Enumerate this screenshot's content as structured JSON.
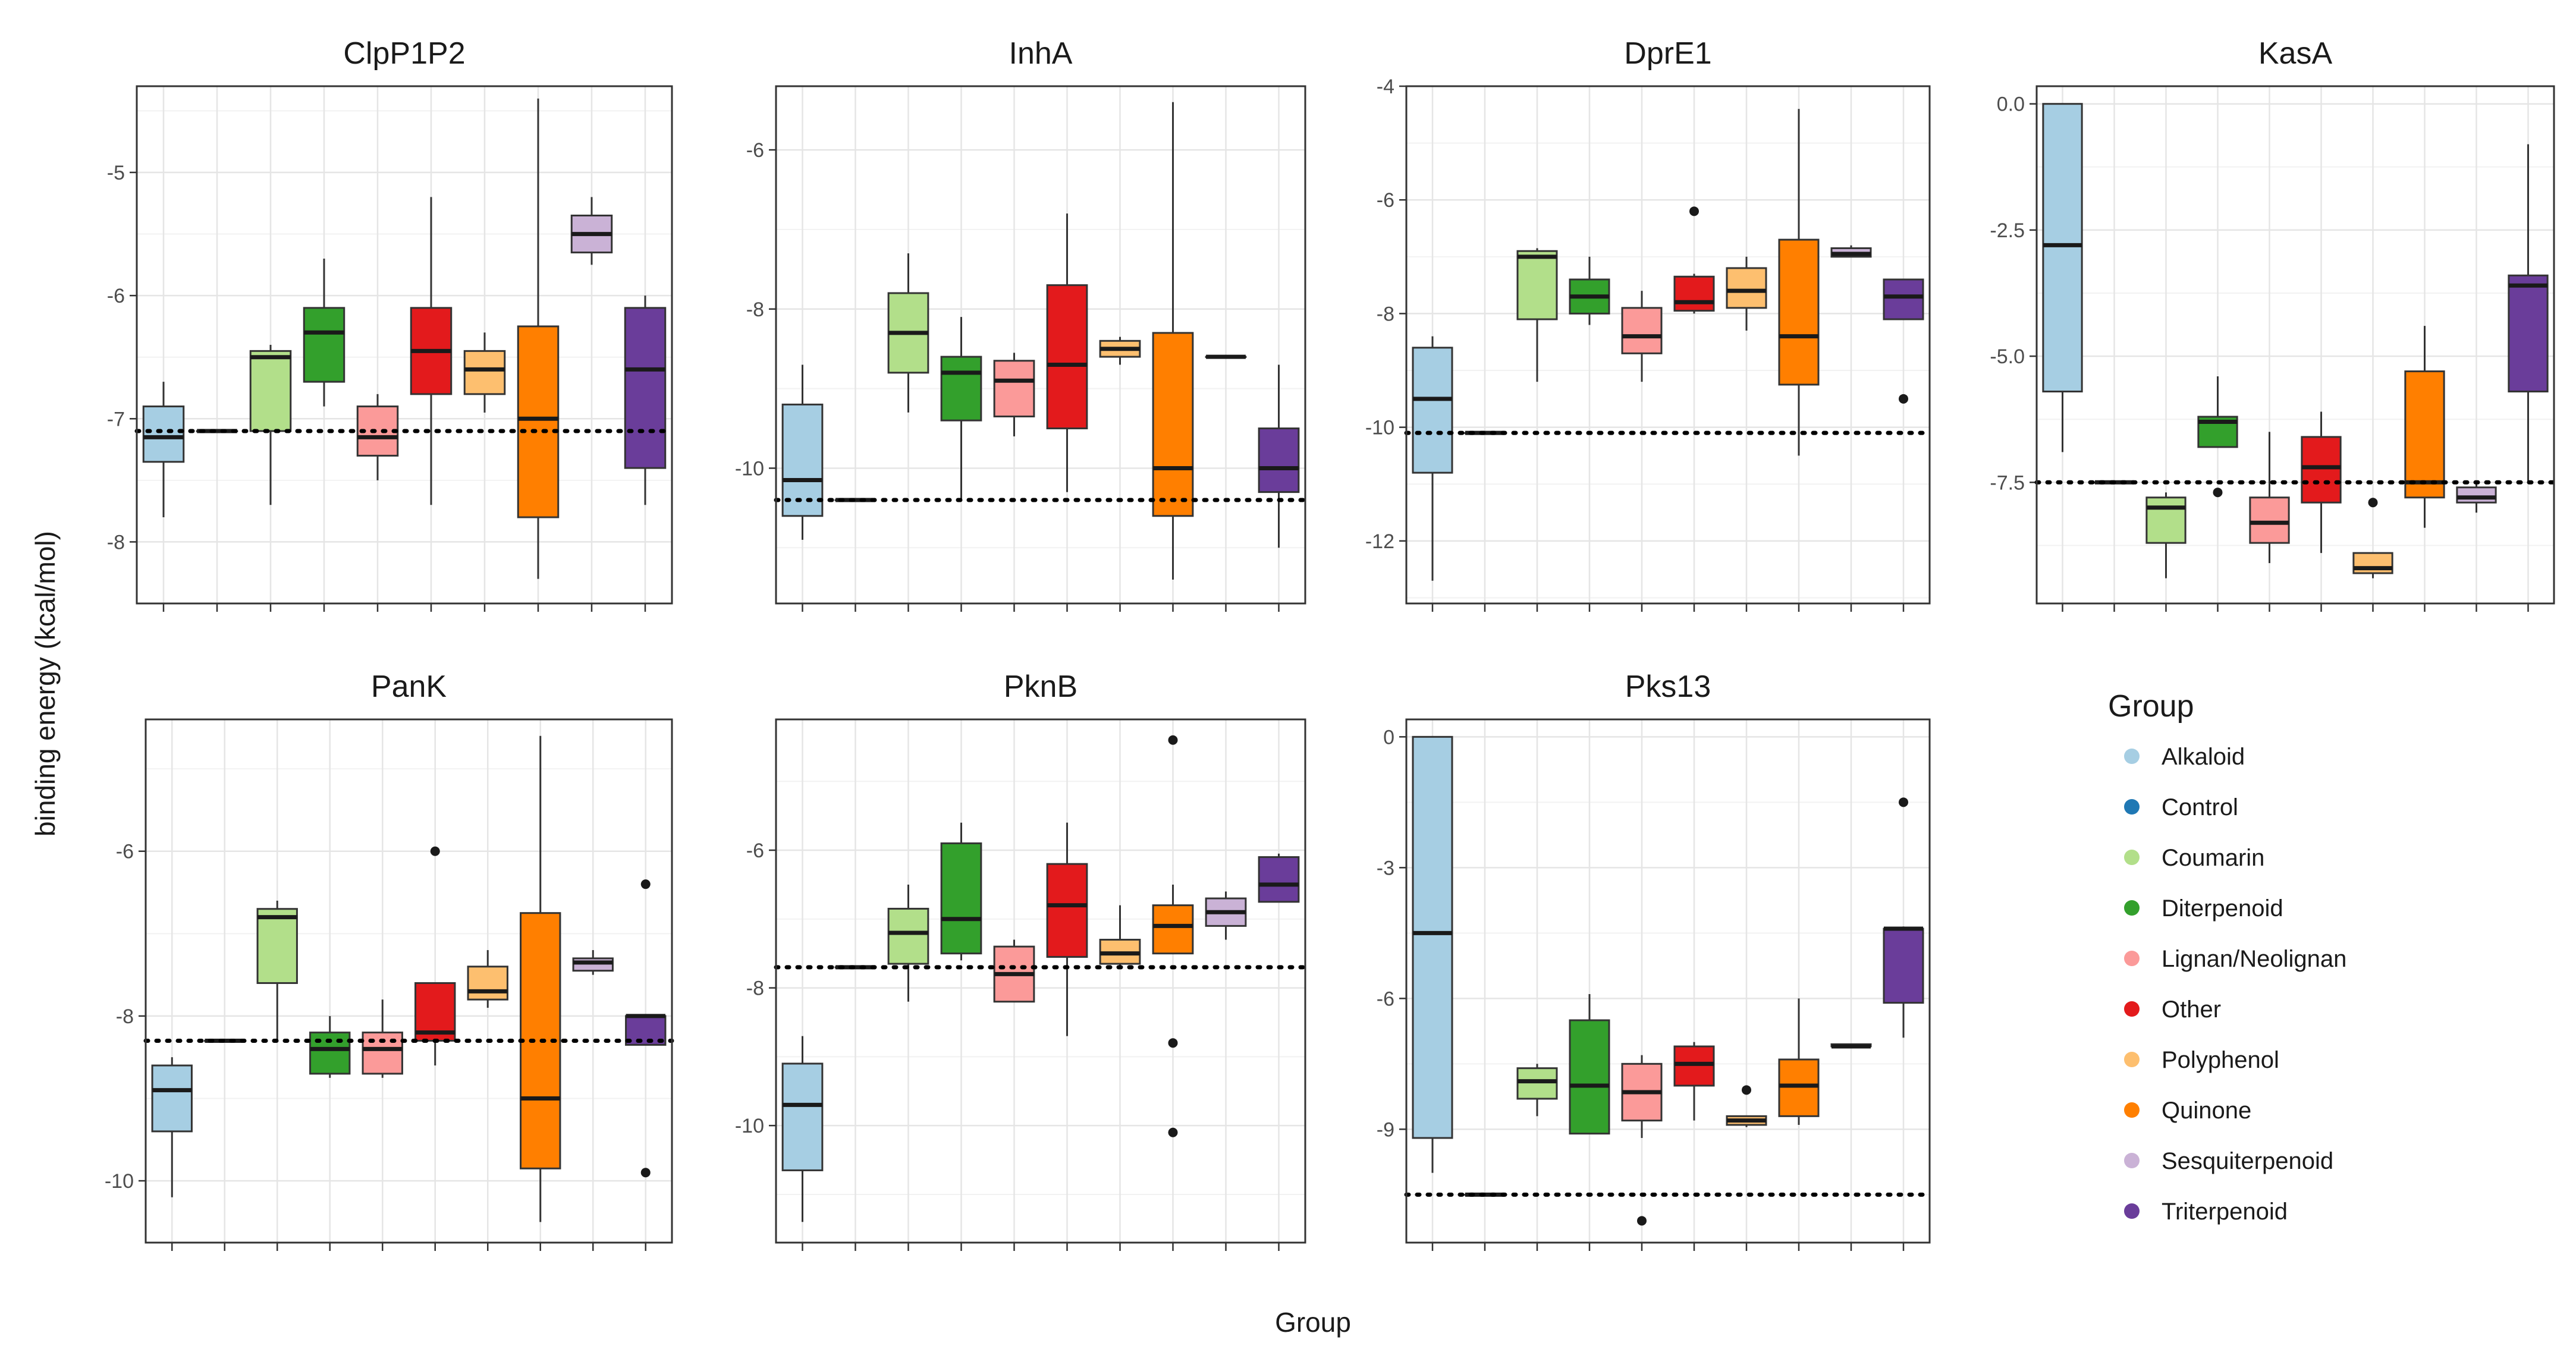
{
  "chart_data": {
    "type": "boxplot",
    "xlabel": "Group",
    "ylabel": "binding energy (kcal/mol)",
    "legend": {
      "title": "Group",
      "position": "right",
      "groups": [
        "Alkaloid",
        "Control",
        "Coumarin",
        "Diterpenoid",
        "Lignan/Neolignan",
        "Other",
        "Polyphenol",
        "Quinone",
        "Sesquiterpenoid",
        "Triterpenoid"
      ],
      "colors": [
        "#a6cee3",
        "#1f78b4",
        "#b2df8a",
        "#33a02c",
        "#fb9a99",
        "#e31a1c",
        "#fdbf6f",
        "#ff7f00",
        "#cab2d6",
        "#6a3d9a"
      ]
    },
    "panels": [
      {
        "title": "ClpP1P2",
        "ylim": [
          -8.5,
          -4.3
        ],
        "ticks": [
          -5,
          -6,
          -7,
          -8
        ],
        "tick_labels": [
          "-5",
          "-6",
          "-7",
          "-8"
        ],
        "control_line": -7.1,
        "boxes": [
          {
            "group": "Alkaloid",
            "q1": -7.35,
            "median": -7.15,
            "q3": -6.9,
            "lower": -7.8,
            "upper": -6.7,
            "outliers": []
          },
          {
            "group": "Control",
            "q1": -7.1,
            "median": -7.1,
            "q3": -7.1,
            "lower": -7.1,
            "upper": -7.1,
            "outliers": []
          },
          {
            "group": "Coumarin",
            "q1": -7.1,
            "median": -6.5,
            "q3": -6.45,
            "lower": -7.7,
            "upper": -6.4,
            "outliers": []
          },
          {
            "group": "Diterpenoid",
            "q1": -6.7,
            "median": -6.3,
            "q3": -6.1,
            "lower": -6.9,
            "upper": -5.7,
            "outliers": []
          },
          {
            "group": "Lignan/Neolignan",
            "q1": -7.3,
            "median": -7.15,
            "q3": -6.9,
            "lower": -7.5,
            "upper": -6.8,
            "outliers": []
          },
          {
            "group": "Other",
            "q1": -6.8,
            "median": -6.45,
            "q3": -6.1,
            "lower": -7.7,
            "upper": -5.2,
            "outliers": []
          },
          {
            "group": "Polyphenol",
            "q1": -6.8,
            "median": -6.6,
            "q3": -6.45,
            "lower": -6.95,
            "upper": -6.3,
            "outliers": []
          },
          {
            "group": "Quinone",
            "q1": -7.8,
            "median": -7.0,
            "q3": -6.25,
            "lower": -8.3,
            "upper": -4.4,
            "outliers": []
          },
          {
            "group": "Sesquiterpenoid",
            "q1": -5.65,
            "median": -5.5,
            "q3": -5.35,
            "lower": -5.75,
            "upper": -5.2,
            "outliers": []
          },
          {
            "group": "Triterpenoid",
            "q1": -7.4,
            "median": -6.6,
            "q3": -6.1,
            "lower": -7.7,
            "upper": -6.0,
            "outliers": []
          }
        ]
      },
      {
        "title": "InhA",
        "ylim": [
          -11.7,
          -5.2
        ],
        "ticks": [
          -6,
          -8,
          -10
        ],
        "tick_labels": [
          "-6",
          "-8",
          "-10"
        ],
        "control_line": -10.4,
        "boxes": [
          {
            "group": "Alkaloid",
            "q1": -10.6,
            "median": -10.15,
            "q3": -9.2,
            "lower": -10.9,
            "upper": -8.7,
            "outliers": []
          },
          {
            "group": "Control",
            "q1": -10.4,
            "median": -10.4,
            "q3": -10.4,
            "lower": -10.4,
            "upper": -10.4,
            "outliers": []
          },
          {
            "group": "Coumarin",
            "q1": -8.8,
            "median": -8.3,
            "q3": -7.8,
            "lower": -9.3,
            "upper": -7.3,
            "outliers": []
          },
          {
            "group": "Diterpenoid",
            "q1": -9.4,
            "median": -8.8,
            "q3": -8.6,
            "lower": -10.4,
            "upper": -8.1,
            "outliers": []
          },
          {
            "group": "Lignan/Neolignan",
            "q1": -9.35,
            "median": -8.9,
            "q3": -8.65,
            "lower": -9.6,
            "upper": -8.55,
            "outliers": []
          },
          {
            "group": "Other",
            "q1": -9.5,
            "median": -8.7,
            "q3": -7.7,
            "lower": -10.3,
            "upper": -6.8,
            "outliers": []
          },
          {
            "group": "Polyphenol",
            "q1": -8.6,
            "median": -8.5,
            "q3": -8.4,
            "lower": -8.7,
            "upper": -8.35,
            "outliers": []
          },
          {
            "group": "Quinone",
            "q1": -10.6,
            "median": -10.0,
            "q3": -8.3,
            "lower": -11.4,
            "upper": -5.4,
            "outliers": []
          },
          {
            "group": "Sesquiterpenoid",
            "q1": -8.6,
            "median": -8.6,
            "q3": -8.6,
            "lower": -8.6,
            "upper": -8.6,
            "outliers": []
          },
          {
            "group": "Triterpenoid",
            "q1": -10.3,
            "median": -10.0,
            "q3": -9.5,
            "lower": -11.0,
            "upper": -8.7,
            "outliers": []
          }
        ]
      },
      {
        "title": "DprE1",
        "ylim": [
          -13.1,
          -4.0
        ],
        "ticks": [
          -4,
          -6,
          -8,
          -10,
          -12
        ],
        "tick_labels": [
          "-4",
          "-6",
          "-8",
          "-10",
          "-12"
        ],
        "control_line": -10.1,
        "boxes": [
          {
            "group": "Alkaloid",
            "q1": -10.8,
            "median": -9.5,
            "q3": -8.6,
            "lower": -12.7,
            "upper": -8.4,
            "outliers": []
          },
          {
            "group": "Control",
            "q1": -10.1,
            "median": -10.1,
            "q3": -10.1,
            "lower": -10.1,
            "upper": -10.1,
            "outliers": []
          },
          {
            "group": "Coumarin",
            "q1": -8.1,
            "median": -7.0,
            "q3": -6.9,
            "lower": -9.2,
            "upper": -6.85,
            "outliers": []
          },
          {
            "group": "Diterpenoid",
            "q1": -8.0,
            "median": -7.7,
            "q3": -7.4,
            "lower": -8.2,
            "upper": -7.0,
            "outliers": []
          },
          {
            "group": "Lignan/Neolignan",
            "q1": -8.7,
            "median": -8.4,
            "q3": -7.9,
            "lower": -9.2,
            "upper": -7.6,
            "outliers": []
          },
          {
            "group": "Other",
            "q1": -7.95,
            "median": -7.8,
            "q3": -7.35,
            "lower": -8.0,
            "upper": -7.3,
            "outliers": [
              -6.2
            ]
          },
          {
            "group": "Polyphenol",
            "q1": -7.9,
            "median": -7.6,
            "q3": -7.2,
            "lower": -8.3,
            "upper": -7.0,
            "outliers": []
          },
          {
            "group": "Quinone",
            "q1": -9.25,
            "median": -8.4,
            "q3": -6.7,
            "lower": -10.5,
            "upper": -4.4,
            "outliers": []
          },
          {
            "group": "Sesquiterpenoid",
            "q1": -7.0,
            "median": -6.95,
            "q3": -6.85,
            "lower": -7.0,
            "upper": -6.8,
            "outliers": []
          },
          {
            "group": "Triterpenoid",
            "q1": -8.1,
            "median": -7.7,
            "q3": -7.4,
            "lower": -8.1,
            "upper": -7.4,
            "outliers": [
              -9.5
            ]
          }
        ]
      },
      {
        "title": "KasA",
        "ylim": [
          -9.9,
          0.35
        ],
        "ticks": [
          0,
          -2.5,
          -5,
          -7.5
        ],
        "tick_labels": [
          "0.0",
          "-2.5",
          "-5.0",
          "-7.5"
        ],
        "control_line": -7.5,
        "boxes": [
          {
            "group": "Alkaloid",
            "q1": -5.7,
            "median": -2.8,
            "q3": 0.0,
            "lower": -6.9,
            "upper": 0.0,
            "outliers": []
          },
          {
            "group": "Control",
            "q1": -7.5,
            "median": -7.5,
            "q3": -7.5,
            "lower": -7.5,
            "upper": -7.5,
            "outliers": []
          },
          {
            "group": "Coumarin",
            "q1": -8.7,
            "median": -8.0,
            "q3": -7.8,
            "lower": -9.4,
            "upper": -7.7,
            "outliers": []
          },
          {
            "group": "Diterpenoid",
            "q1": -6.8,
            "median": -6.3,
            "q3": -6.2,
            "lower": -6.8,
            "upper": -5.4,
            "outliers": [
              -7.7
            ]
          },
          {
            "group": "Lignan/Neolignan",
            "q1": -8.7,
            "median": -8.3,
            "q3": -7.8,
            "lower": -9.1,
            "upper": -6.5,
            "outliers": []
          },
          {
            "group": "Other",
            "q1": -7.9,
            "median": -7.2,
            "q3": -6.6,
            "lower": -8.9,
            "upper": -6.1,
            "outliers": []
          },
          {
            "group": "Polyphenol",
            "q1": -9.3,
            "median": -9.2,
            "q3": -8.9,
            "lower": -9.4,
            "upper": -8.9,
            "outliers": [
              -7.9
            ]
          },
          {
            "group": "Quinone",
            "q1": -7.8,
            "median": -7.5,
            "q3": -5.3,
            "lower": -8.4,
            "upper": -4.4,
            "outliers": []
          },
          {
            "group": "Sesquiterpenoid",
            "q1": -7.9,
            "median": -7.8,
            "q3": -7.6,
            "lower": -8.1,
            "upper": -7.5,
            "outliers": []
          },
          {
            "group": "Triterpenoid",
            "q1": -5.7,
            "median": -3.6,
            "q3": -3.4,
            "lower": -7.5,
            "upper": -0.8,
            "outliers": []
          }
        ]
      },
      {
        "title": "PanK",
        "ylim": [
          -10.75,
          -4.4
        ],
        "ticks": [
          -6,
          -8,
          -10
        ],
        "tick_labels": [
          "-6",
          "-8",
          "-10"
        ],
        "control_line": -8.3,
        "boxes": [
          {
            "group": "Alkaloid",
            "q1": -9.4,
            "median": -8.9,
            "q3": -8.6,
            "lower": -10.2,
            "upper": -8.5,
            "outliers": []
          },
          {
            "group": "Control",
            "q1": -8.3,
            "median": -8.3,
            "q3": -8.3,
            "lower": -8.3,
            "upper": -8.3,
            "outliers": []
          },
          {
            "group": "Coumarin",
            "q1": -7.6,
            "median": -6.8,
            "q3": -6.7,
            "lower": -8.3,
            "upper": -6.6,
            "outliers": []
          },
          {
            "group": "Diterpenoid",
            "q1": -8.7,
            "median": -8.4,
            "q3": -8.2,
            "lower": -8.75,
            "upper": -8.0,
            "outliers": []
          },
          {
            "group": "Lignan/Neolignan",
            "q1": -8.7,
            "median": -8.4,
            "q3": -8.2,
            "lower": -8.75,
            "upper": -7.8,
            "outliers": []
          },
          {
            "group": "Other",
            "q1": -8.3,
            "median": -8.2,
            "q3": -7.6,
            "lower": -8.6,
            "upper": -7.6,
            "outliers": [
              -6.0
            ]
          },
          {
            "group": "Polyphenol",
            "q1": -7.8,
            "median": -7.7,
            "q3": -7.4,
            "lower": -7.9,
            "upper": -7.2,
            "outliers": []
          },
          {
            "group": "Quinone",
            "q1": -9.85,
            "median": -9.0,
            "q3": -6.75,
            "lower": -10.5,
            "upper": -4.6,
            "outliers": []
          },
          {
            "group": "Sesquiterpenoid",
            "q1": -7.45,
            "median": -7.35,
            "q3": -7.3,
            "lower": -7.5,
            "upper": -7.2,
            "outliers": []
          },
          {
            "group": "Triterpenoid",
            "q1": -8.35,
            "median": -8.0,
            "q3": -8.0,
            "lower": -8.35,
            "upper": -8.0,
            "outliers": [
              -6.4,
              -9.9
            ]
          }
        ]
      },
      {
        "title": "PknB",
        "ylim": [
          -11.7,
          -4.1
        ],
        "ticks": [
          -6,
          -8,
          -10
        ],
        "tick_labels": [
          "-6",
          "-8",
          "-10"
        ],
        "control_line": -7.7,
        "boxes": [
          {
            "group": "Alkaloid",
            "q1": -10.65,
            "median": -9.7,
            "q3": -9.1,
            "lower": -11.4,
            "upper": -8.7,
            "outliers": []
          },
          {
            "group": "Control",
            "q1": -7.7,
            "median": -7.7,
            "q3": -7.7,
            "lower": -7.7,
            "upper": -7.7,
            "outliers": []
          },
          {
            "group": "Coumarin",
            "q1": -7.65,
            "median": -7.2,
            "q3": -6.85,
            "lower": -8.2,
            "upper": -6.5,
            "outliers": []
          },
          {
            "group": "Diterpenoid",
            "q1": -7.5,
            "median": -7.0,
            "q3": -5.9,
            "lower": -7.6,
            "upper": -5.6,
            "outliers": []
          },
          {
            "group": "Lignan/Neolignan",
            "q1": -8.2,
            "median": -7.8,
            "q3": -7.4,
            "lower": -8.2,
            "upper": -7.3,
            "outliers": []
          },
          {
            "group": "Other",
            "q1": -7.55,
            "median": -6.8,
            "q3": -6.2,
            "lower": -8.7,
            "upper": -5.6,
            "outliers": []
          },
          {
            "group": "Polyphenol",
            "q1": -7.65,
            "median": -7.5,
            "q3": -7.3,
            "lower": -7.7,
            "upper": -6.8,
            "outliers": []
          },
          {
            "group": "Quinone",
            "q1": -7.5,
            "median": -7.1,
            "q3": -6.8,
            "lower": -7.5,
            "upper": -6.5,
            "outliers": [
              -4.4,
              -8.8,
              -10.1
            ]
          },
          {
            "group": "Sesquiterpenoid",
            "q1": -7.1,
            "median": -6.9,
            "q3": -6.7,
            "lower": -7.3,
            "upper": -6.6,
            "outliers": []
          },
          {
            "group": "Triterpenoid",
            "q1": -6.75,
            "median": -6.5,
            "q3": -6.1,
            "lower": -6.75,
            "upper": -6.05,
            "outliers": []
          }
        ]
      },
      {
        "title": "Pks13",
        "ylim": [
          -11.6,
          0.4
        ],
        "ticks": [
          0,
          -3,
          -6,
          -9
        ],
        "tick_labels": [
          "0",
          "-3",
          "-6",
          "-9"
        ],
        "control_line": -10.5,
        "boxes": [
          {
            "group": "Alkaloid",
            "q1": -9.2,
            "median": -4.5,
            "q3": 0.0,
            "lower": -10.0,
            "upper": 0.0,
            "outliers": []
          },
          {
            "group": "Control",
            "q1": -10.5,
            "median": -10.5,
            "q3": -10.5,
            "lower": -10.5,
            "upper": -10.5,
            "outliers": []
          },
          {
            "group": "Coumarin",
            "q1": -8.3,
            "median": -7.9,
            "q3": -7.6,
            "lower": -8.7,
            "upper": -7.5,
            "outliers": []
          },
          {
            "group": "Diterpenoid",
            "q1": -9.1,
            "median": -8.0,
            "q3": -6.5,
            "lower": -9.1,
            "upper": -5.9,
            "outliers": []
          },
          {
            "group": "Lignan/Neolignan",
            "q1": -8.8,
            "median": -8.15,
            "q3": -7.5,
            "lower": -9.2,
            "upper": -7.3,
            "outliers": [
              -11.1
            ]
          },
          {
            "group": "Other",
            "q1": -8.0,
            "median": -7.5,
            "q3": -7.1,
            "lower": -8.8,
            "upper": -7.0,
            "outliers": []
          },
          {
            "group": "Polyphenol",
            "q1": -8.9,
            "median": -8.8,
            "q3": -8.7,
            "lower": -8.95,
            "upper": -8.7,
            "outliers": [
              -8.1
            ]
          },
          {
            "group": "Quinone",
            "q1": -8.7,
            "median": -8.0,
            "q3": -7.4,
            "lower": -8.9,
            "upper": -6.0,
            "outliers": []
          },
          {
            "group": "Sesquiterpenoid",
            "q1": -7.1,
            "median": -7.1,
            "q3": -7.05,
            "lower": -7.1,
            "upper": -7.05,
            "outliers": []
          },
          {
            "group": "Triterpenoid",
            "q1": -6.1,
            "median": -4.4,
            "q3": -4.4,
            "lower": -6.9,
            "upper": -4.35,
            "outliers": [
              -1.5
            ]
          }
        ]
      }
    ]
  }
}
